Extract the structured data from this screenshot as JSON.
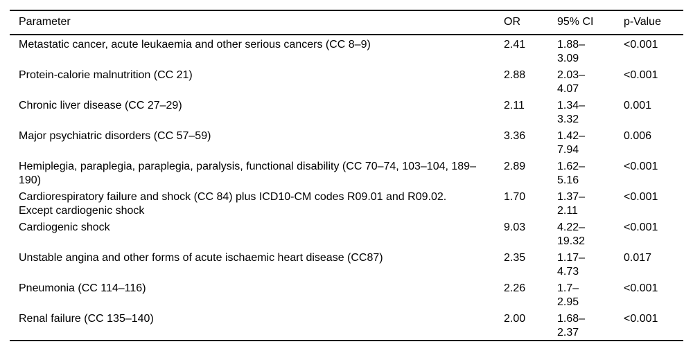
{
  "table": {
    "columns": [
      {
        "label": "Parameter"
      },
      {
        "label": "OR"
      },
      {
        "label": "95% CI"
      },
      {
        "label": "p-Value"
      }
    ],
    "rows": [
      {
        "parameter": "Metastatic cancer, acute leukaemia and other serious cancers (CC 8–9)",
        "or": "2.41",
        "ci": "1.88–3.09",
        "p": "<0.001"
      },
      {
        "parameter": "Protein-calorie malnutrition (CC 21)",
        "or": "2.88",
        "ci": "2.03–4.07",
        "p": "<0.001"
      },
      {
        "parameter": "Chronic liver disease (CC 27–29)",
        "or": "2.11",
        "ci": "1.34–3.32",
        "p": "0.001"
      },
      {
        "parameter": "Major psychiatric disorders (CC 57–59)",
        "or": "3.36",
        "ci": "1.42–7.94",
        "p": "0.006"
      },
      {
        "parameter": "Hemiplegia, paraplegia, paraplegia, paralysis, functional disability (CC 70–74, 103–104, 189–\n190)",
        "or": "2.89",
        "ci": "1.62–5.16",
        "p": "<0.001"
      },
      {
        "parameter": "Cardiorespiratory failure and shock (CC 84) plus ICD10-CM codes R09.01 and R09.02.\nExcept cardiogenic shock",
        "or": "1.70",
        "ci": "1.37–2.11",
        "p": "<0.001"
      },
      {
        "parameter": "Cardiogenic shock",
        "or": "9.03",
        "ci": "4.22–19.32",
        "p": "<0.001"
      },
      {
        "parameter": "Unstable angina and other forms of acute ischaemic heart disease (CC87)",
        "or": "2.35",
        "ci": "1.17–4.73",
        "p": "0.017"
      },
      {
        "parameter": "Pneumonia (CC 114–116)",
        "or": "2.26",
        "ci": "1.7–2.95",
        "p": "<0.001"
      },
      {
        "parameter": "Renal failure (CC 135–140)",
        "or": "2.00",
        "ci": "1.68–2.37",
        "p": "<0.001"
      }
    ]
  },
  "colors": {
    "text": "#000000",
    "rule": "#000000",
    "background": "#ffffff"
  }
}
